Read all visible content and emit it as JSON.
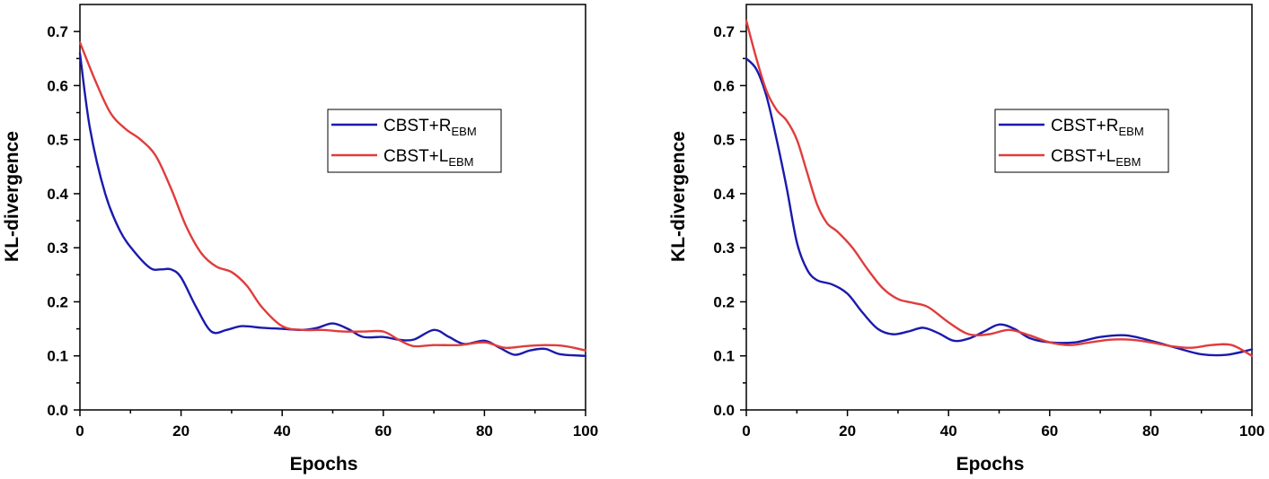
{
  "charts": [
    {
      "type": "line",
      "xlabel": "Epochs",
      "ylabel": "KL-divergence",
      "xlim": [
        0,
        100
      ],
      "ylim": [
        0,
        0.75
      ],
      "xticks": [
        "0",
        "20",
        "40",
        "60",
        "80",
        "100"
      ],
      "yticks": [
        "0.0",
        "0.1",
        "0.2",
        "0.3",
        "0.4",
        "0.5",
        "0.6",
        "0.7"
      ],
      "legend_position": "right-center",
      "series": [
        {
          "name": "CBST+R",
          "name_base": "CBST+R",
          "name_sub": "EBM",
          "color": "#1a1aad",
          "x": [
            0,
            2,
            5,
            8,
            11,
            14,
            16,
            18,
            20,
            23,
            26,
            29,
            32,
            36,
            40,
            44,
            47,
            50,
            53,
            56,
            60,
            63,
            66,
            70,
            73,
            76,
            80,
            83,
            86,
            89,
            92,
            95,
            100
          ],
          "y": [
            0.66,
            0.52,
            0.4,
            0.33,
            0.29,
            0.262,
            0.26,
            0.26,
            0.245,
            0.19,
            0.145,
            0.148,
            0.155,
            0.152,
            0.15,
            0.148,
            0.152,
            0.16,
            0.15,
            0.135,
            0.135,
            0.13,
            0.13,
            0.148,
            0.135,
            0.122,
            0.128,
            0.115,
            0.102,
            0.11,
            0.113,
            0.103,
            0.1
          ]
        },
        {
          "name": "CBST+L",
          "name_base": "CBST+L",
          "name_sub": "EBM",
          "color": "#e03c3c",
          "x": [
            0,
            3,
            6,
            9,
            12,
            15,
            18,
            21,
            24,
            27,
            30,
            33,
            36,
            40,
            44,
            48,
            52,
            56,
            60,
            63,
            66,
            70,
            75,
            80,
            84,
            88,
            92,
            96,
            100
          ],
          "y": [
            0.68,
            0.61,
            0.55,
            0.52,
            0.5,
            0.47,
            0.41,
            0.34,
            0.29,
            0.265,
            0.255,
            0.23,
            0.19,
            0.155,
            0.148,
            0.148,
            0.145,
            0.145,
            0.145,
            0.13,
            0.118,
            0.12,
            0.12,
            0.125,
            0.115,
            0.118,
            0.12,
            0.118,
            0.11
          ]
        }
      ]
    },
    {
      "type": "line",
      "xlabel": "Epochs",
      "ylabel": "KL-divergence",
      "xlim": [
        0,
        100
      ],
      "ylim": [
        0,
        0.75
      ],
      "xticks": [
        "0",
        "20",
        "40",
        "60",
        "80",
        "100"
      ],
      "yticks": [
        "0.0",
        "0.1",
        "0.2",
        "0.3",
        "0.4",
        "0.5",
        "0.6",
        "0.7"
      ],
      "legend_position": "right-center",
      "series": [
        {
          "name": "CBST+R",
          "name_base": "CBST+R",
          "name_sub": "EBM",
          "color": "#1a1aad",
          "x": [
            0,
            2,
            4,
            6,
            8,
            10,
            12,
            14,
            17,
            20,
            23,
            26,
            29,
            32,
            35,
            38,
            41,
            44,
            47,
            50,
            53,
            56,
            60,
            65,
            70,
            75,
            80,
            85,
            90,
            95,
            100
          ],
          "y": [
            0.65,
            0.63,
            0.58,
            0.5,
            0.41,
            0.31,
            0.26,
            0.24,
            0.232,
            0.215,
            0.18,
            0.15,
            0.14,
            0.145,
            0.152,
            0.142,
            0.128,
            0.132,
            0.145,
            0.158,
            0.15,
            0.133,
            0.125,
            0.125,
            0.135,
            0.138,
            0.128,
            0.115,
            0.103,
            0.102,
            0.112
          ]
        },
        {
          "name": "CBST+L",
          "name_base": "CBST+L",
          "name_sub": "EBM",
          "color": "#e03c3c",
          "x": [
            0,
            2,
            4,
            6,
            8,
            10,
            12,
            14,
            16,
            18,
            21,
            24,
            27,
            30,
            33,
            36,
            40,
            44,
            48,
            52,
            56,
            60,
            64,
            68,
            72,
            76,
            80,
            84,
            88,
            92,
            96,
            100
          ],
          "y": [
            0.72,
            0.65,
            0.59,
            0.555,
            0.535,
            0.5,
            0.44,
            0.38,
            0.345,
            0.33,
            0.3,
            0.26,
            0.225,
            0.205,
            0.198,
            0.19,
            0.162,
            0.14,
            0.14,
            0.148,
            0.138,
            0.125,
            0.12,
            0.125,
            0.13,
            0.13,
            0.125,
            0.118,
            0.115,
            0.12,
            0.12,
            0.1
          ]
        }
      ]
    }
  ]
}
